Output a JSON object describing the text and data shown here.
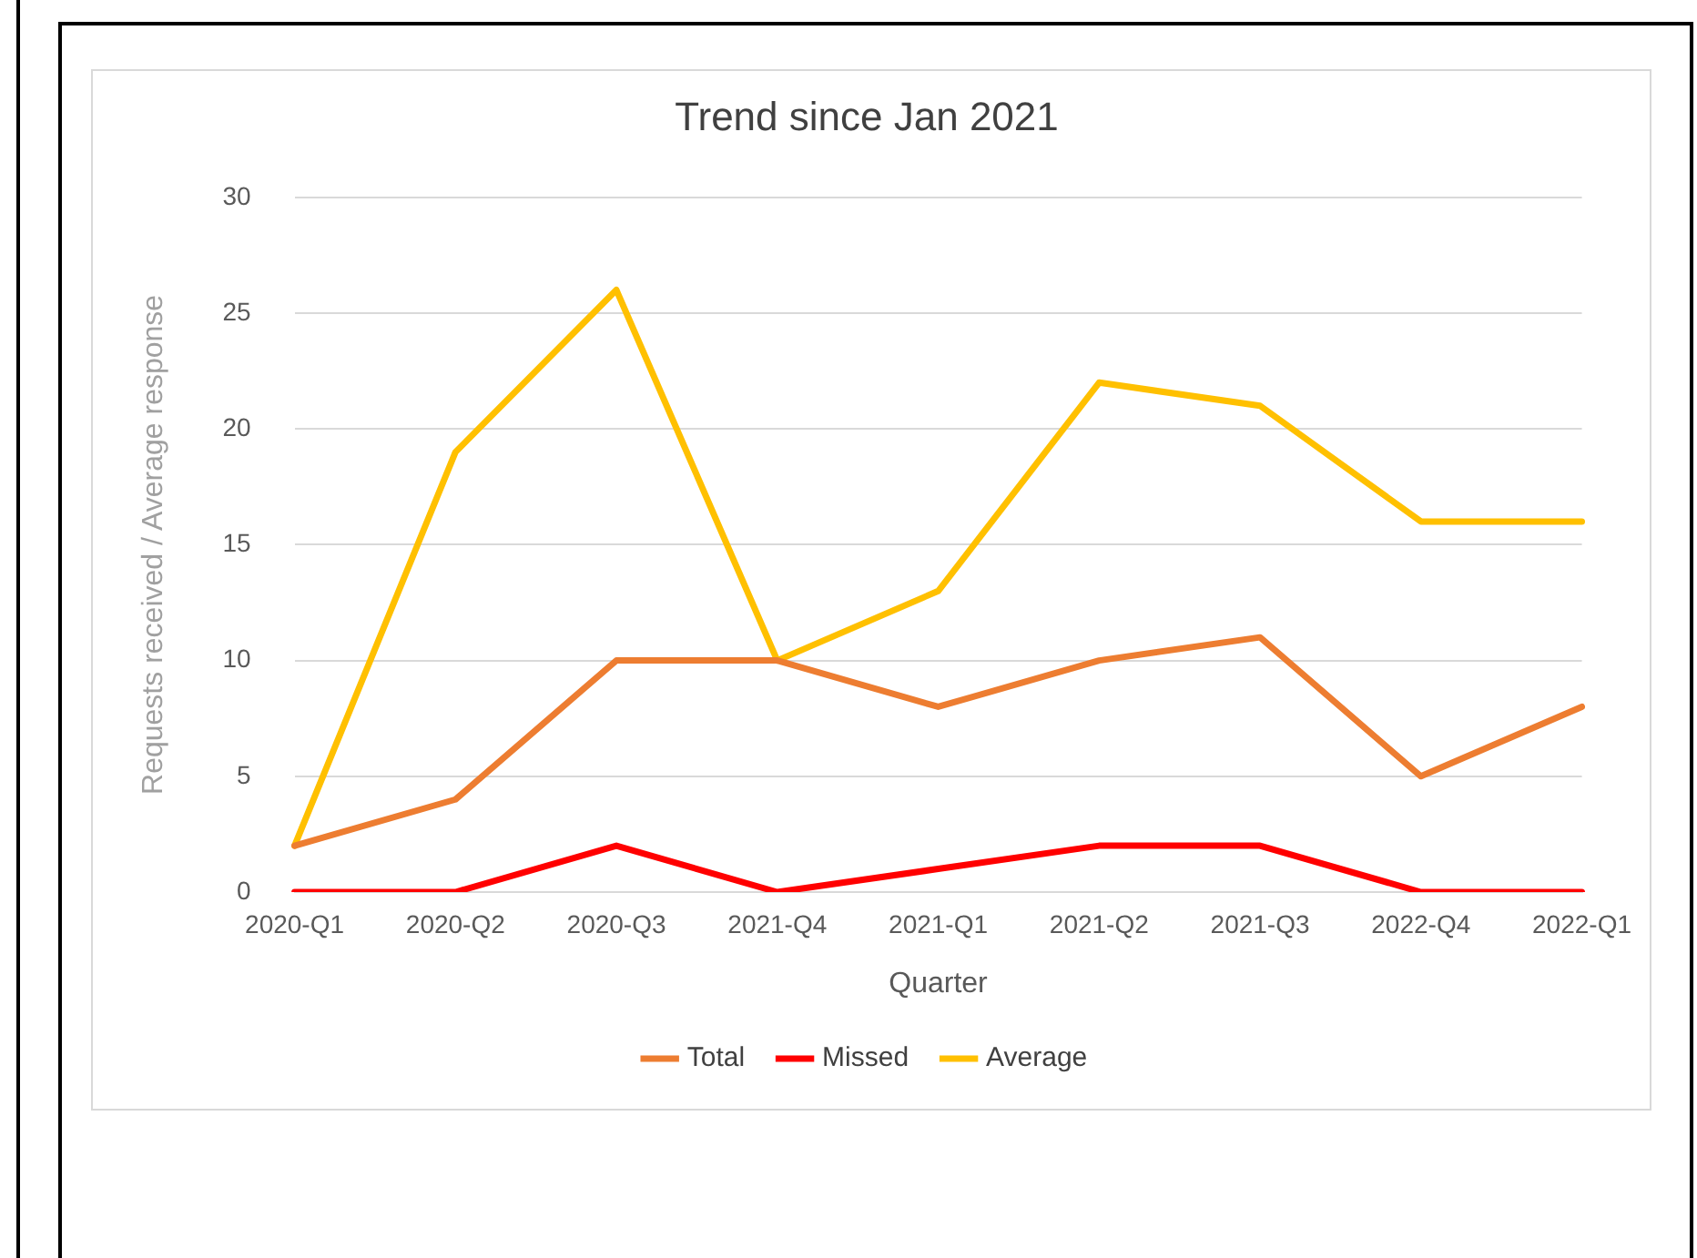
{
  "chart_data": {
    "type": "line",
    "title": "Trend since Jan 2021",
    "xlabel": "Quarter",
    "ylabel": "Requests received / Average response",
    "categories": [
      "2020-Q1",
      "2020-Q2",
      "2020-Q3",
      "2021-Q4",
      "2021-Q1",
      "2021-Q2",
      "2021-Q3",
      "2022-Q4",
      "2022-Q1"
    ],
    "series": [
      {
        "name": "Total",
        "color": "#ed7d31",
        "values": [
          2,
          4,
          10,
          10,
          8,
          10,
          11,
          5,
          8
        ]
      },
      {
        "name": "Missed",
        "color": "#ff0000",
        "values": [
          0,
          0,
          2,
          0,
          1,
          2,
          2,
          0,
          0
        ]
      },
      {
        "name": "Average",
        "color": "#ffc000",
        "values": [
          2,
          19,
          26,
          10,
          13,
          22,
          21,
          16,
          16
        ]
      }
    ],
    "ylim": [
      0,
      30
    ],
    "yticks": [
      0,
      5,
      10,
      15,
      20,
      25,
      30
    ],
    "grid": "y",
    "legend": "bottom",
    "marker": "none",
    "line_style": "solid"
  }
}
